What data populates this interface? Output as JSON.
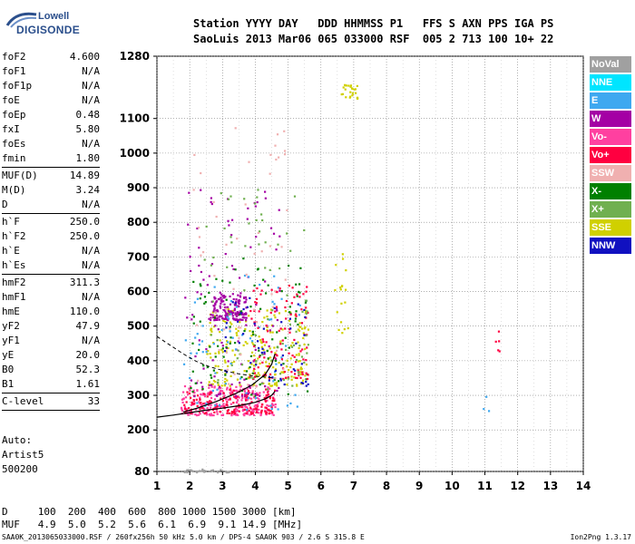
{
  "logo": {
    "line1": "Lowell",
    "line2": "DIGISONDE"
  },
  "header": {
    "line1": "Station YYYY DAY   DDD HHMMSS P1   FFS S AXN PPS IGA PS",
    "line2": "SaoLuis 2013 Mar06 065 033000 RSF  005 2 713 100 10+ 22"
  },
  "params": [
    {
      "group": [
        {
          "name": "foF2",
          "value": "4.600"
        },
        {
          "name": "foF1",
          "value": "N/A"
        },
        {
          "name": "foF1p",
          "value": "N/A"
        },
        {
          "name": "foE",
          "value": "N/A"
        },
        {
          "name": "foEp",
          "value": "0.48"
        },
        {
          "name": "fxI",
          "value": "5.80"
        },
        {
          "name": "foEs",
          "value": "N/A"
        },
        {
          "name": "fmin",
          "value": "1.80"
        }
      ]
    },
    {
      "group": [
        {
          "name": "MUF(D)",
          "value": "14.89"
        },
        {
          "name": "M(D)",
          "value": "3.24"
        },
        {
          "name": "D",
          "value": "N/A"
        }
      ]
    },
    {
      "group": [
        {
          "name": "h`F",
          "value": "250.0"
        },
        {
          "name": "h`F2",
          "value": "250.0"
        },
        {
          "name": "h`E",
          "value": "N/A"
        },
        {
          "name": "h`Es",
          "value": "N/A"
        }
      ]
    },
    {
      "group": [
        {
          "name": "hmF2",
          "value": "311.3"
        },
        {
          "name": "hmF1",
          "value": "N/A"
        },
        {
          "name": "hmE",
          "value": "110.0"
        },
        {
          "name": "yF2",
          "value": "47.9"
        },
        {
          "name": "yF1",
          "value": "N/A"
        },
        {
          "name": "yE",
          "value": "20.0"
        },
        {
          "name": "B0",
          "value": "52.3"
        },
        {
          "name": "B1",
          "value": "1.61"
        }
      ]
    },
    {
      "group": [
        {
          "name": "C-level",
          "value": "33"
        }
      ]
    }
  ],
  "auto": {
    "line1": "Auto:",
    "line2": "Artist5",
    "line3": "500200"
  },
  "legend": [
    {
      "label": "NoVal",
      "color": "#a0a0a0"
    },
    {
      "label": "NNE",
      "color": "#00e5ff"
    },
    {
      "label": "E",
      "color": "#3ea8f0"
    },
    {
      "label": "W",
      "color": "#a400a4"
    },
    {
      "label": "Vo-",
      "color": "#ff40a0"
    },
    {
      "label": "Vo+",
      "color": "#ff0040"
    },
    {
      "label": "SSW",
      "color": "#f0b0b0"
    },
    {
      "label": "X-",
      "color": "#008000"
    },
    {
      "label": "X+",
      "color": "#70b050"
    },
    {
      "label": "SSE",
      "color": "#d0d000"
    },
    {
      "label": "NNW",
      "color": "#1010c0"
    }
  ],
  "footer": {
    "row1_label": "D",
    "row1_values": [
      "100",
      "200",
      "400",
      "600",
      "800",
      "1000",
      "1500",
      "3000"
    ],
    "row1_unit": "[km]",
    "row2_label": "MUF",
    "row2_values": [
      "4.9",
      "5.0",
      "5.2",
      "5.6",
      "6.1",
      "6.9",
      "9.1",
      "14.9"
    ],
    "row2_unit": "[MHz]",
    "status": "SAA0K_2013065033000.RSF / 260fx256h 50 kHz 5.0 km / DPS-4 SAA0K 903 / 2.6 S 315.8 E",
    "version": "Ion2Png 1.3.17"
  },
  "chart_data": {
    "type": "scatter",
    "xlim": [
      1,
      14
    ],
    "ylim": [
      80,
      1280
    ],
    "x_ticks": [
      "1",
      "2",
      "3",
      "4",
      "5",
      "6",
      "7",
      "8",
      "9",
      "10",
      "11",
      "12",
      "13",
      "14"
    ],
    "y_ticks": [
      "80",
      "200",
      "300",
      "400",
      "500",
      "600",
      "700",
      "800",
      "900",
      "1000",
      "1100",
      "1280"
    ],
    "grid": true,
    "legend_position": "right",
    "profile_curve": [
      [
        1.0,
        237
      ],
      [
        1.5,
        243
      ],
      [
        2.0,
        250
      ],
      [
        2.5,
        257
      ],
      [
        3.0,
        263
      ],
      [
        3.5,
        270
      ],
      [
        4.0,
        280
      ],
      [
        4.3,
        290
      ],
      [
        4.5,
        300
      ],
      [
        4.6,
        312
      ]
    ],
    "trace_curve": [
      [
        1.8,
        252
      ],
      [
        2.2,
        262
      ],
      [
        2.8,
        282
      ],
      [
        3.4,
        305
      ],
      [
        3.9,
        330
      ],
      [
        4.3,
        360
      ],
      [
        4.5,
        390
      ],
      [
        4.6,
        420
      ]
    ],
    "dashed_curve": [
      [
        1.0,
        470
      ],
      [
        1.4,
        445
      ],
      [
        1.8,
        420
      ],
      [
        2.2,
        398
      ],
      [
        2.6,
        383
      ],
      [
        3.0,
        372
      ],
      [
        3.5,
        362
      ],
      [
        4.0,
        355
      ],
      [
        4.6,
        350
      ]
    ],
    "clusters": [
      {
        "color": "#ff40a0",
        "xrange": [
          1.7,
          4.6
        ],
        "yrange": [
          245,
          330
        ],
        "count": 260
      },
      {
        "color": "#ff0040",
        "xrange": [
          1.8,
          4.6
        ],
        "yrange": [
          250,
          320
        ],
        "count": 150
      },
      {
        "color": "#d0d000",
        "xrange": [
          2.5,
          5.6
        ],
        "yrange": [
          330,
          560
        ],
        "count": 220
      },
      {
        "color": "#a400a4",
        "xrange": [
          2.6,
          3.7
        ],
        "yrange": [
          520,
          600
        ],
        "count": 150
      },
      {
        "color": "#a400a4",
        "xrange": [
          1.8,
          4.8
        ],
        "yrange": [
          300,
          900
        ],
        "count": 110
      },
      {
        "color": "#008000",
        "xrange": [
          2.0,
          5.6
        ],
        "yrange": [
          300,
          700
        ],
        "count": 100
      },
      {
        "color": "#3ea8f0",
        "xrange": [
          1.8,
          5.4
        ],
        "yrange": [
          260,
          650
        ],
        "count": 70
      },
      {
        "color": "#ff0040",
        "xrange": [
          3.8,
          5.6
        ],
        "yrange": [
          350,
          620
        ],
        "count": 110
      },
      {
        "color": "#70b050",
        "xrange": [
          2.4,
          5.6
        ],
        "yrange": [
          320,
          900
        ],
        "count": 80
      },
      {
        "color": "#f0b0b0",
        "xrange": [
          2.0,
          5.0
        ],
        "yrange": [
          300,
          1100
        ],
        "count": 60
      },
      {
        "color": "#1010c0",
        "xrange": [
          3.0,
          5.6
        ],
        "yrange": [
          330,
          600
        ],
        "count": 50
      },
      {
        "color": "#d0d000",
        "xrange": [
          6.6,
          7.1
        ],
        "yrange": [
          1160,
          1200
        ],
        "count": 25
      },
      {
        "color": "#d0d000",
        "xrange": [
          6.3,
          6.8
        ],
        "yrange": [
          480,
          720
        ],
        "count": 18
      },
      {
        "color": "#a0a0a0",
        "xrange": [
          1.8,
          3.2
        ],
        "yrange": [
          80,
          90
        ],
        "count": 30
      },
      {
        "color": "#ff0040",
        "xrange": [
          11.3,
          11.5
        ],
        "yrange": [
          430,
          500
        ],
        "count": 5
      },
      {
        "color": "#3ea8f0",
        "xrange": [
          10.9,
          11.1
        ],
        "yrange": [
          250,
          300
        ],
        "count": 3
      }
    ]
  }
}
